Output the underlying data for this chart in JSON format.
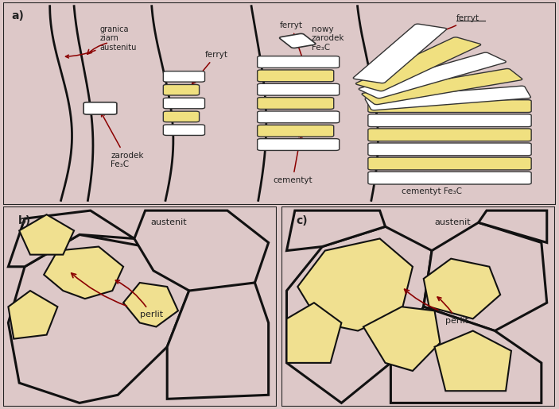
{
  "bg_color": "#ddc8c8",
  "border_color": "#222222",
  "grain_boundary_color": "#111111",
  "ferrite_fill": "#fffff0",
  "cementite_fill": "#f0e080",
  "ferrite_stroke": "#333333",
  "arrow_color": "#8b0000",
  "text_color": "#222222",
  "pearlite_color": "#f0e090",
  "label_a": "a)",
  "label_b": "b)",
  "label_c": "c)",
  "text_granica": "granica\nziarn\naustenitu",
  "text_zarodek": "zarodek\nFe₃C",
  "text_ferryt": "ferryt",
  "text_cementyt": "cementyt",
  "text_nowy": "nowy\nzarodek\nFe₃C",
  "text_cementyt2": "cementyt Fe₃C",
  "text_austenit": "austenit",
  "text_perlit": "perlit"
}
